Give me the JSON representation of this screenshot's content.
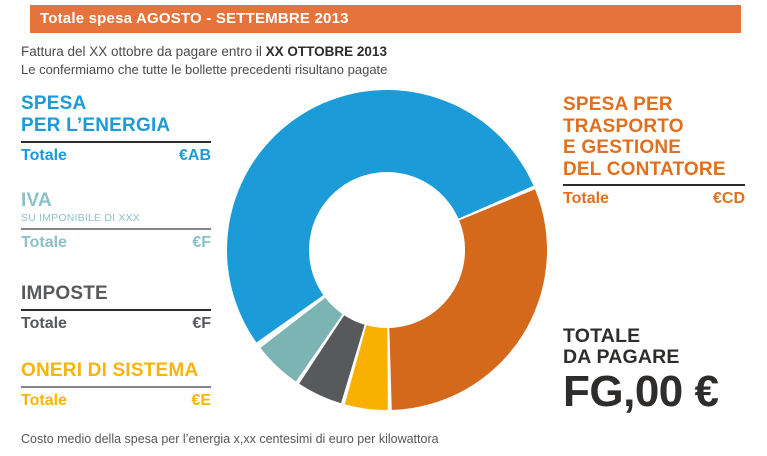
{
  "header": {
    "title": "Totale spesa AGOSTO - SETTEMBRE 2013",
    "bg_color": "#e4743c"
  },
  "intro": {
    "line1_prefix": "Fattura del XX ottobre da pagare entro il ",
    "line1_bold": "XX OTTOBRE 2013",
    "line2": "Le confermiamo che tutte le bollette precedenti risultano pagate"
  },
  "sections": {
    "energia": {
      "title_line1": "SPESA",
      "title_line2": "PER L’ENERGIA",
      "totale_label": "Totale",
      "value": "€AB",
      "color": "#1b9bd8"
    },
    "iva": {
      "title": "IVA",
      "subtitle": "SU IMPONIBILE DI XXX",
      "totale_label": "Totale",
      "value": "€F",
      "color": "#8cc1c9"
    },
    "imposte": {
      "title": "IMPOSTE",
      "totale_label": "Totale",
      "value": "€F",
      "color": "#58595b"
    },
    "oneri": {
      "title": "ONERI DI SISTEMA",
      "totale_label": "Totale",
      "value": "€E",
      "color": "#f7b50c"
    },
    "trasporto": {
      "title_line1": "SPESA PER",
      "title_line2": "TRASPORTO",
      "title_line3": "E GESTIONE",
      "title_line4": "DEL CONTATORE",
      "totale_label": "Totale",
      "value": "€CD",
      "color": "#e0701e"
    }
  },
  "total_block": {
    "label_line1": "TOTALE",
    "label_line2": "DA PAGARE",
    "amount": "FG,00 €"
  },
  "footer_note": "Costo medio della spesa per l’energia x,xx centesimi di euro per kilowattora",
  "chart_data": {
    "type": "pie",
    "variant": "donut",
    "title": "",
    "legend_position": "none",
    "slices": [
      {
        "id": "energia",
        "label": "Spesa per l'energia",
        "percent": 53.6,
        "start_deg": 234,
        "end_deg": 427,
        "color": "#1b9bd8"
      },
      {
        "id": "trasporto",
        "label": "Spesa per trasporto e gestione del contatore",
        "percent": 31.1,
        "start_deg": 67,
        "end_deg": 179,
        "color": "#d4691b"
      },
      {
        "id": "oneri",
        "label": "Oneri di sistema",
        "percent": 4.7,
        "start_deg": 179,
        "end_deg": 196,
        "color": "#f9b000"
      },
      {
        "id": "imposte",
        "label": "Imposte",
        "percent": 4.7,
        "start_deg": 196,
        "end_deg": 214,
        "color": "#58595b"
      },
      {
        "id": "iva",
        "label": "IVA",
        "percent": 5.0,
        "start_deg": 214,
        "end_deg": 233,
        "color": "#7cb4b3"
      }
    ],
    "geometry": {
      "outer_radius": 160,
      "inner_radius": 78,
      "gap_deg": 1.4
    }
  }
}
